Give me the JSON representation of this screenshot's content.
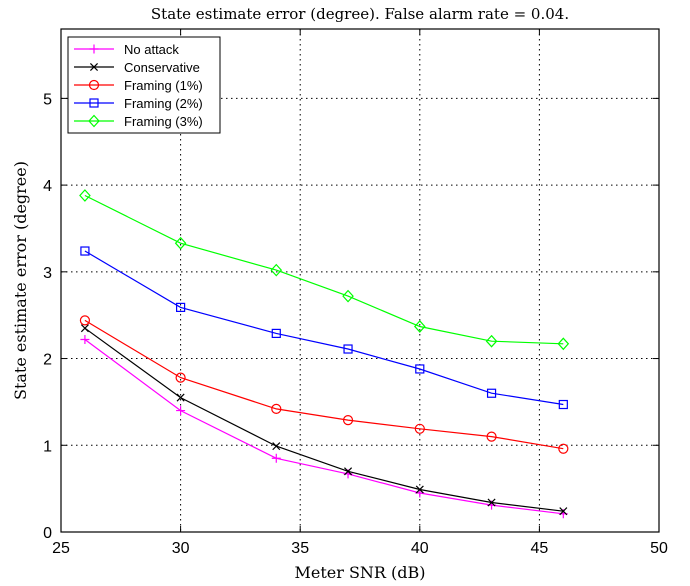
{
  "chart_data": {
    "type": "line",
    "title": "State estimate error (degree). False alarm rate = 0.04.",
    "xlabel": "Meter SNR (dB)",
    "ylabel": "State estimate error (degree)",
    "xlim": [
      25,
      50
    ],
    "ylim": [
      0,
      5.8
    ],
    "xticks": [
      25,
      30,
      35,
      40,
      45,
      50
    ],
    "yticks": [
      0,
      1,
      2,
      3,
      4,
      5
    ],
    "grid": true,
    "legend_position": "top-left",
    "x": [
      26,
      30,
      34,
      37,
      40,
      43,
      46
    ],
    "series": [
      {
        "name": "No attack",
        "color": "#ff00ff",
        "marker": "plus",
        "values": [
          2.22,
          1.4,
          0.85,
          0.67,
          0.45,
          0.31,
          0.21
        ]
      },
      {
        "name": "Conservative",
        "color": "#000000",
        "marker": "x",
        "values": [
          2.35,
          1.55,
          0.99,
          0.7,
          0.49,
          0.34,
          0.24
        ]
      },
      {
        "name": "Framing (1%)",
        "color": "#ff0000",
        "marker": "circle",
        "values": [
          2.44,
          1.78,
          1.42,
          1.29,
          1.19,
          1.1,
          0.96
        ]
      },
      {
        "name": "Framing (2%)",
        "color": "#0000ff",
        "marker": "square",
        "values": [
          3.24,
          2.59,
          2.29,
          2.11,
          1.88,
          1.6,
          1.47
        ]
      },
      {
        "name": "Framing (3%)",
        "color": "#00ff00",
        "marker": "diamond",
        "values": [
          3.88,
          3.33,
          3.02,
          2.72,
          2.37,
          2.2,
          2.17
        ]
      }
    ]
  }
}
